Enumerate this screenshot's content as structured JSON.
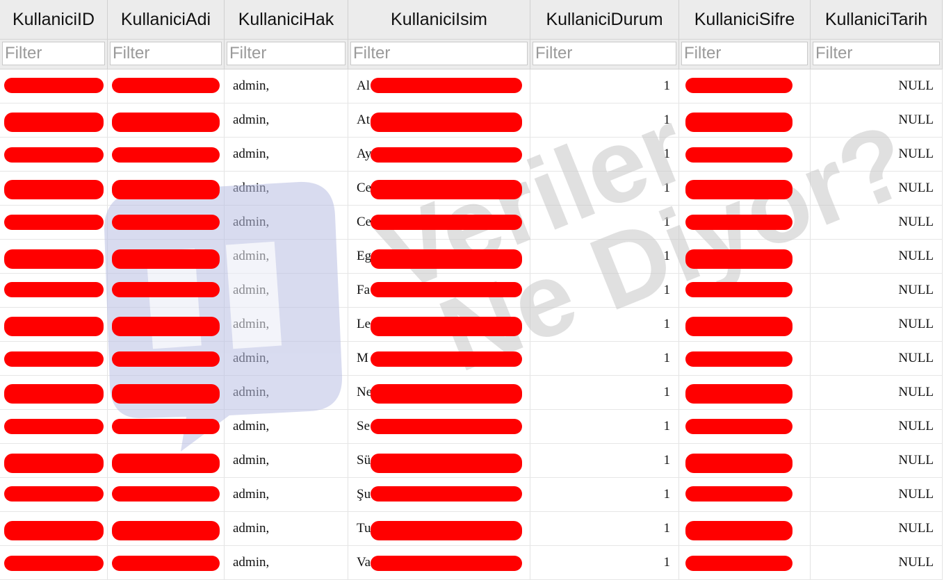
{
  "columns": [
    "KullaniciID",
    "KullaniciAdi",
    "KullaniciHak",
    "KullaniciIsim",
    "KullaniciDurum",
    "KullaniciSifre",
    "KullaniciTarih"
  ],
  "filter_placeholder": "Filter",
  "watermark": {
    "line1": "Veriler",
    "line2": "Ne Diyor?"
  },
  "rows": [
    {
      "hak": "admin,",
      "isim_prefix": "Al",
      "durum": "1",
      "tarih": "NULL"
    },
    {
      "hak": "admin,",
      "isim_prefix": "At",
      "durum": "1",
      "tarih": "NULL"
    },
    {
      "hak": "admin,",
      "isim_prefix": "Ay",
      "durum": "1",
      "tarih": "NULL"
    },
    {
      "hak": "admin,",
      "isim_prefix": "Ce",
      "durum": "1",
      "tarih": "NULL"
    },
    {
      "hak": "admin,",
      "isim_prefix": "Ce",
      "durum": "1",
      "tarih": "NULL"
    },
    {
      "hak": "admin,",
      "isim_prefix": "Eg",
      "durum": "1",
      "tarih": "NULL"
    },
    {
      "hak": "admin,",
      "isim_prefix": "Fa",
      "durum": "1",
      "tarih": "NULL"
    },
    {
      "hak": "admin,",
      "isim_prefix": "Le",
      "durum": "1",
      "tarih": "NULL"
    },
    {
      "hak": "admin,",
      "isim_prefix": "M",
      "durum": "1",
      "tarih": "NULL"
    },
    {
      "hak": "admin,",
      "isim_prefix": "Ne",
      "durum": "1",
      "tarih": "NULL"
    },
    {
      "hak": "admin,",
      "isim_prefix": "Se",
      "durum": "1",
      "tarih": "NULL"
    },
    {
      "hak": "admin,",
      "isim_prefix": "Sü",
      "durum": "1",
      "tarih": "NULL"
    },
    {
      "hak": "admin,",
      "isim_prefix": "Şu",
      "durum": "1",
      "tarih": "NULL"
    },
    {
      "hak": "admin,",
      "isim_prefix": "Tu",
      "durum": "1",
      "tarih": "NULL"
    },
    {
      "hak": "admin,",
      "isim_prefix": "Va",
      "durum": "1",
      "tarih": "NULL"
    }
  ],
  "colors": {
    "redaction": "#ff0000",
    "header_bg": "#ececec",
    "watermark_logo": "#c9cde8",
    "watermark_text": "#d6d6d6"
  }
}
